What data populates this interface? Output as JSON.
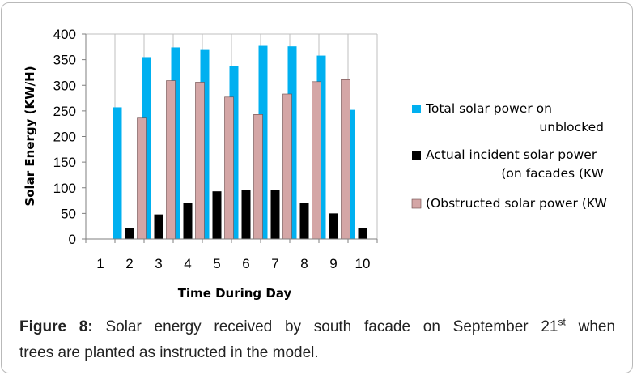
{
  "colors": {
    "total": "#00b0f0",
    "actual": "#000000",
    "obstructed": "#d4a6a6",
    "grid": "#bfbfbf"
  },
  "chart_data": {
    "type": "bar",
    "title": "",
    "xlabel": "Time During Day",
    "ylabel": "Solar Energy (KW/H)",
    "ylim": [
      0,
      400
    ],
    "y_ticks": [
      "0",
      "50",
      "100",
      "150",
      "200",
      "250",
      "300",
      "350",
      "400"
    ],
    "categories": [
      "1",
      "2",
      "3",
      "4",
      "5",
      "6",
      "7",
      "8",
      "9",
      "10"
    ],
    "series": [
      {
        "name": "Total solar power on unblocked",
        "legend_lines": [
          "Total solar power on",
          "unblocked"
        ],
        "values": [
          0,
          257,
          355,
          374,
          369,
          338,
          377,
          376,
          358,
          252
        ]
      },
      {
        "name": "Actual incident solar power (on facades (KW",
        "legend_lines": [
          "Actual incident solar power",
          "(on facades (KW"
        ],
        "values": [
          0,
          22,
          48,
          70,
          93,
          96,
          95,
          70,
          50,
          22
        ]
      },
      {
        "name": "(Obstructed solar power (KW",
        "legend_lines": [
          "(Obstructed solar power (KW"
        ],
        "values": [
          0,
          236,
          309,
          306,
          277,
          243,
          283,
          307,
          311,
          null
        ]
      }
    ],
    "legend": "right",
    "grid": "vertical"
  },
  "caption": {
    "label": "Figure 8:",
    "text_line1": "Solar energy received by south facade on September 21",
    "superscript": "st",
    "text_line1_end": "when",
    "text_line2": "trees are planted as instructed in the model."
  }
}
